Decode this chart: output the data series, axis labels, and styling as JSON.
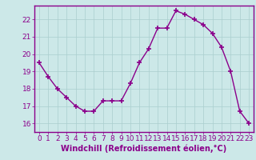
{
  "x": [
    0,
    1,
    2,
    3,
    4,
    5,
    6,
    7,
    8,
    9,
    10,
    11,
    12,
    13,
    14,
    15,
    16,
    17,
    18,
    19,
    20,
    21,
    22,
    23
  ],
  "y": [
    19.5,
    18.7,
    18.0,
    17.5,
    17.0,
    16.7,
    16.7,
    17.3,
    17.3,
    17.3,
    18.3,
    19.5,
    20.3,
    21.5,
    21.5,
    22.5,
    22.3,
    22.0,
    21.7,
    21.2,
    20.4,
    19.0,
    16.7,
    16.0
  ],
  "line_color": "#8B008B",
  "marker": "+",
  "marker_size": 4,
  "bg_color": "#cce8e8",
  "grid_color": "#aacece",
  "xlabel": "Windchill (Refroidissement éolien,°C)",
  "xlabel_color": "#8B008B",
  "tick_color": "#8B008B",
  "spine_color": "#8B008B",
  "ylim": [
    15.5,
    22.8
  ],
  "xlim": [
    -0.5,
    23.5
  ],
  "yticks": [
    16,
    17,
    18,
    19,
    20,
    21,
    22
  ],
  "xticks": [
    0,
    1,
    2,
    3,
    4,
    5,
    6,
    7,
    8,
    9,
    10,
    11,
    12,
    13,
    14,
    15,
    16,
    17,
    18,
    19,
    20,
    21,
    22,
    23
  ],
  "tick_fontsize": 6.5,
  "xlabel_fontsize": 7,
  "linewidth": 1.0,
  "markeredgewidth": 1.2
}
